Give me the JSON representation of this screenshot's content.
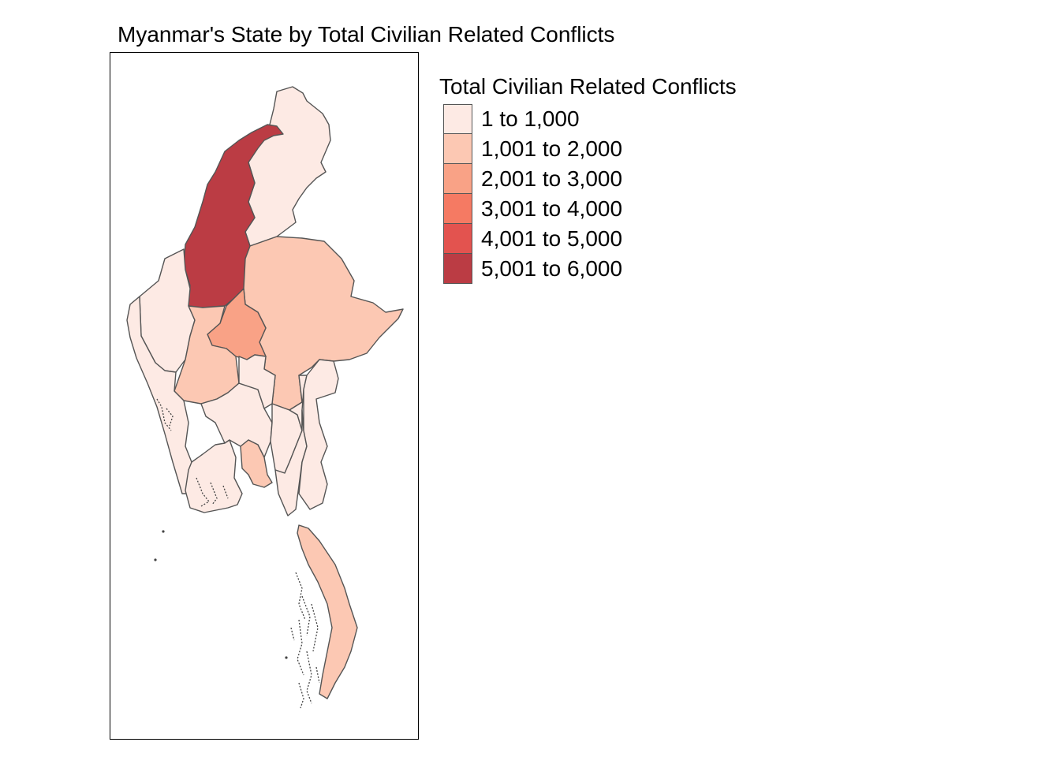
{
  "title": "Myanmar's State by Total Civilian Related Conflicts",
  "legend": {
    "title": "Total Civilian Related Conflicts",
    "items": [
      {
        "label": "1 to 1,000",
        "color": "#fdeae4"
      },
      {
        "label": "1,001 to 2,000",
        "color": "#fcc8b3"
      },
      {
        "label": "2,001 to 3,000",
        "color": "#f9a286"
      },
      {
        "label": "3,001 to 4,000",
        "color": "#f57a63"
      },
      {
        "label": "4,001 to 5,000",
        "color": "#e3534f"
      },
      {
        "label": "5,001 to 6,000",
        "color": "#bb3c44"
      }
    ]
  },
  "regions": [
    {
      "id": "north-east",
      "class": 0
    },
    {
      "id": "north",
      "class": 5
    },
    {
      "id": "north-west",
      "class": 0
    },
    {
      "id": "east",
      "class": 1
    },
    {
      "id": "center",
      "class": 2
    },
    {
      "id": "west-central",
      "class": 1
    },
    {
      "id": "west-coast",
      "class": 0
    },
    {
      "id": "central-1",
      "class": 0
    },
    {
      "id": "central-2",
      "class": 0
    },
    {
      "id": "central-3",
      "class": 0
    },
    {
      "id": "central-east",
      "class": 0
    },
    {
      "id": "southwest",
      "class": 0
    },
    {
      "id": "south-central",
      "class": 1
    },
    {
      "id": "southeast-inner",
      "class": 0
    },
    {
      "id": "southeast-border",
      "class": 0
    },
    {
      "id": "southern-tail",
      "class": 1
    }
  ]
}
